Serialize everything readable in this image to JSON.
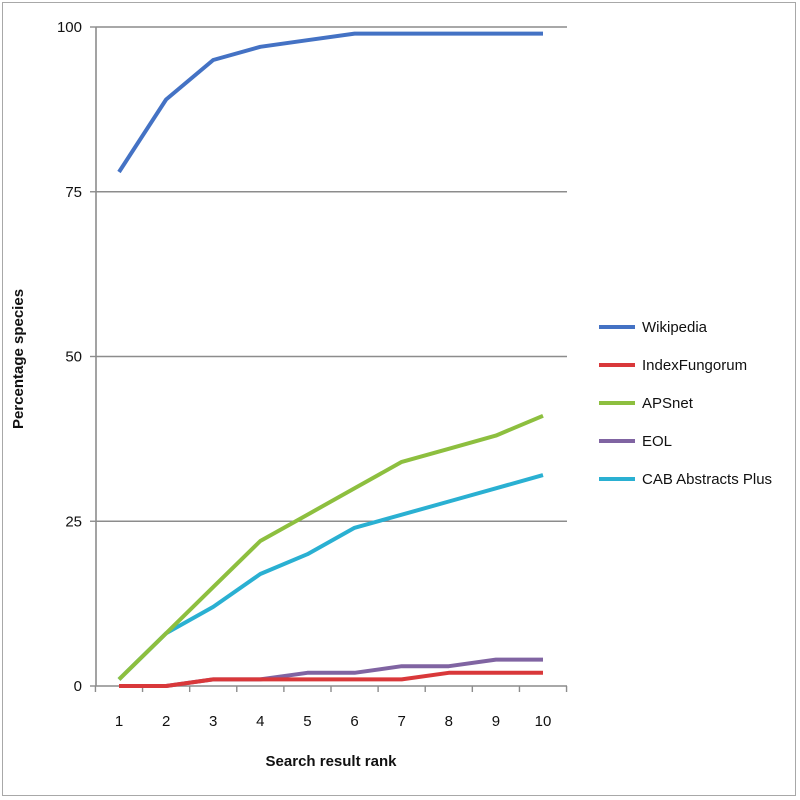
{
  "chart_data": {
    "type": "line",
    "title": "",
    "xlabel": "Search result rank",
    "ylabel": "Percentage species",
    "x": [
      1,
      2,
      3,
      4,
      5,
      6,
      7,
      8,
      9,
      10
    ],
    "x_ticks": [
      "1",
      "2",
      "3",
      "4",
      "5",
      "6",
      "7",
      "8",
      "9",
      "10"
    ],
    "y_ticks": [
      "0",
      "25",
      "50",
      "75",
      "100"
    ],
    "ylim": [
      0,
      100
    ],
    "grid": "horizontal",
    "legend_position": "right",
    "series": [
      {
        "name": "Wikipedia",
        "color": "#4472C4",
        "values": [
          78,
          89,
          95,
          97,
          98,
          99,
          99,
          99,
          99,
          99
        ]
      },
      {
        "name": "IndexFungorum",
        "color": "#D9383A",
        "values": [
          0,
          0,
          1,
          1,
          1,
          1,
          1,
          2,
          2,
          2
        ]
      },
      {
        "name": "APSnet",
        "color": "#8DBF3F",
        "values": [
          1,
          8,
          15,
          22,
          26,
          30,
          34,
          36,
          38,
          41
        ]
      },
      {
        "name": "EOL",
        "color": "#8064A2",
        "values": [
          0,
          0,
          1,
          1,
          2,
          2,
          3,
          3,
          4,
          4
        ]
      },
      {
        "name": "CAB Abstracts Plus",
        "color": "#2AB0D2",
        "values": [
          1,
          8,
          12,
          17,
          20,
          24,
          26,
          28,
          30,
          32
        ]
      }
    ]
  }
}
